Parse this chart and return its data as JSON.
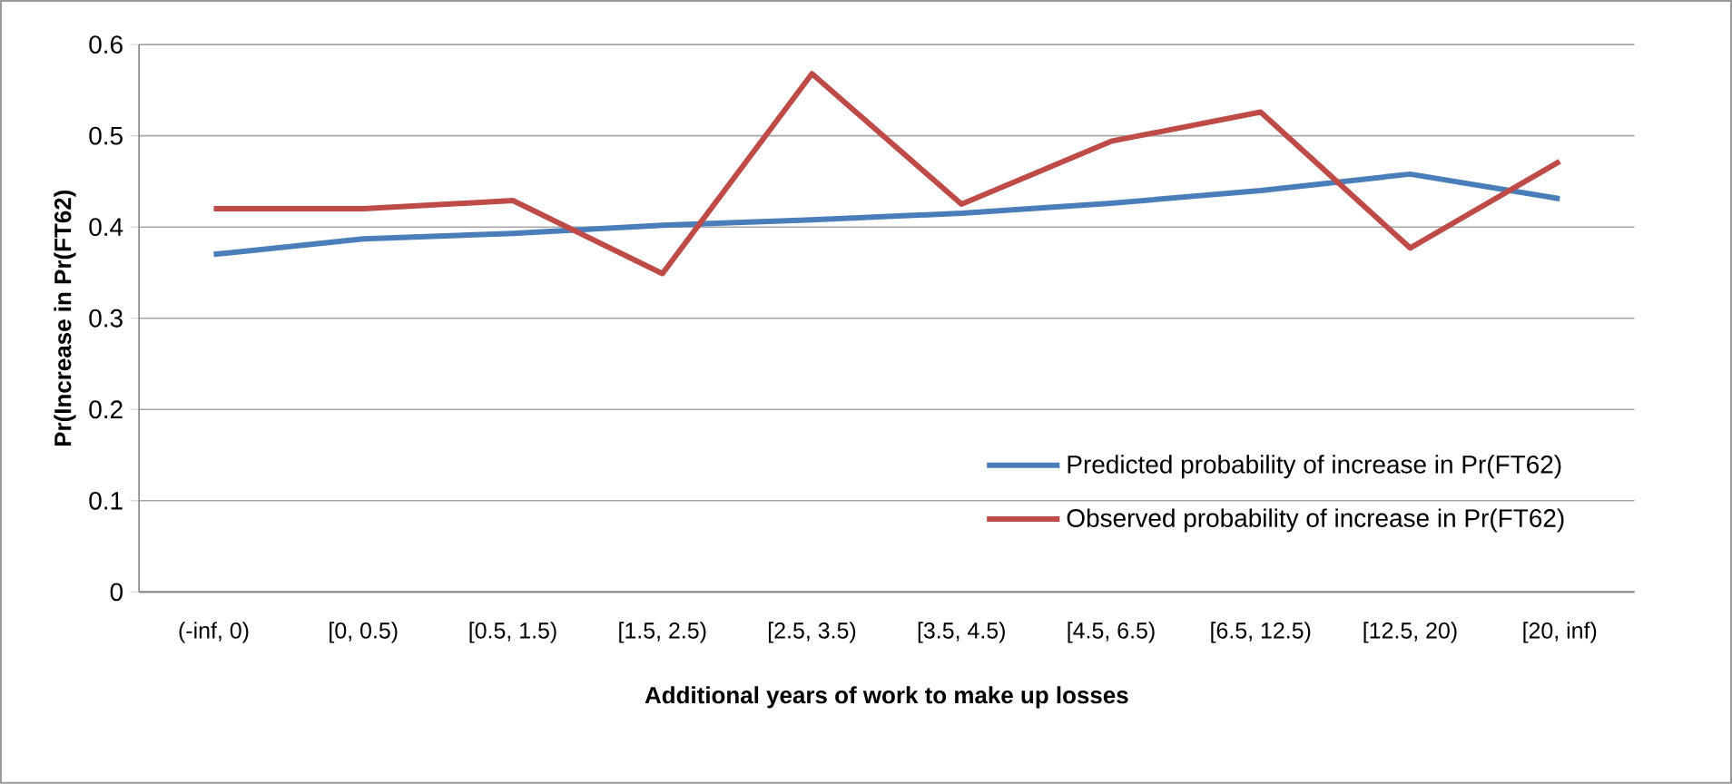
{
  "chart_data": {
    "type": "line",
    "xlabel": "Additional years of work to make up losses",
    "ylabel": "Pr(Increase in Pr(FT62)",
    "categories": [
      "(-inf, 0)",
      "[0, 0.5)",
      "[0.5, 1.5)",
      "[1.5, 2.5)",
      "[2.5, 3.5)",
      "[3.5, 4.5)",
      "[4.5, 6.5)",
      "[6.5, 12.5)",
      "[12.5, 20)",
      "[20, inf)"
    ],
    "series": [
      {
        "name": "Predicted probability of increase in Pr(FT62)",
        "color": "#4a7ebb",
        "values": [
          0.37,
          0.387,
          0.393,
          0.402,
          0.408,
          0.415,
          0.426,
          0.44,
          0.458,
          0.431
        ]
      },
      {
        "name": "Observed probability of increase in Pr(FT62)",
        "color": "#be4b48",
        "values": [
          0.42,
          0.42,
          0.429,
          0.349,
          0.568,
          0.425,
          0.494,
          0.526,
          0.377,
          0.472
        ]
      }
    ],
    "ylim": [
      0,
      0.6
    ],
    "yticks": [
      0,
      0.1,
      0.2,
      0.3,
      0.4,
      0.5,
      0.6
    ],
    "grid": "y",
    "legend": "bottom right",
    "marker": "none",
    "line_style": "solid"
  }
}
